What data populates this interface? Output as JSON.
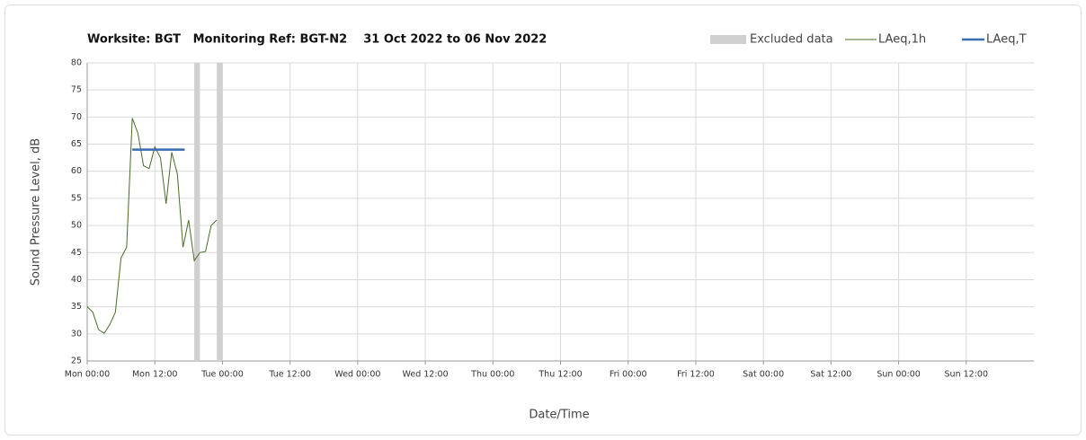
{
  "chart_data": {
    "type": "line",
    "title": "Worksite: BGT   Monitoring Ref: BGT-N2    31 Oct 2022 to 06 Nov 2022",
    "xlabel": "Date/Time",
    "ylabel": "Sound Pressure Level, dB",
    "xlim": [
      0,
      168
    ],
    "xticks": [
      {
        "value": 0,
        "label": "Mon 00:00"
      },
      {
        "value": 12,
        "label": "Mon 12:00"
      },
      {
        "value": 24,
        "label": "Tue 00:00"
      },
      {
        "value": 36,
        "label": "Tue 12:00"
      },
      {
        "value": 48,
        "label": "Wed 00:00"
      },
      {
        "value": 60,
        "label": "Wed 12:00"
      },
      {
        "value": 72,
        "label": "Thu 00:00"
      },
      {
        "value": 84,
        "label": "Thu 12:00"
      },
      {
        "value": 96,
        "label": "Fri 00:00"
      },
      {
        "value": 108,
        "label": "Fri 12:00"
      },
      {
        "value": 120,
        "label": "Sat 00:00"
      },
      {
        "value": 132,
        "label": "Sat 12:00"
      },
      {
        "value": 144,
        "label": "Sun 00:00"
      },
      {
        "value": 156,
        "label": "Sun 12:00"
      }
    ],
    "ylim": [
      25,
      80
    ],
    "yticks": [
      25,
      30,
      35,
      40,
      45,
      50,
      55,
      60,
      65,
      70,
      75,
      80
    ],
    "grid": true,
    "legend": "top-right",
    "excluded": {
      "name": "Excluded data",
      "color": "#d0d0d0",
      "ranges": [
        [
          19,
          20
        ],
        [
          23,
          24
        ]
      ]
    },
    "series": [
      {
        "name": "LAeq,1h",
        "color": "#4a6b2a",
        "x": [
          0,
          1,
          2,
          3,
          4,
          5,
          6,
          7,
          8,
          9,
          10,
          11,
          12,
          13,
          14,
          15,
          16,
          17,
          18,
          19,
          20,
          21,
          22,
          23
        ],
        "values": [
          35,
          34,
          30.8,
          30.1,
          31.7,
          34,
          44,
          46,
          69.8,
          67,
          61,
          60.5,
          64.5,
          62.5,
          54,
          63.5,
          59.5,
          46,
          51,
          43.5,
          45,
          45.2,
          50,
          51
        ]
      },
      {
        "name": "LAeq,T",
        "color": "#3a6ab0",
        "x": [
          8,
          17.3
        ],
        "values": [
          64,
          64
        ]
      }
    ]
  }
}
